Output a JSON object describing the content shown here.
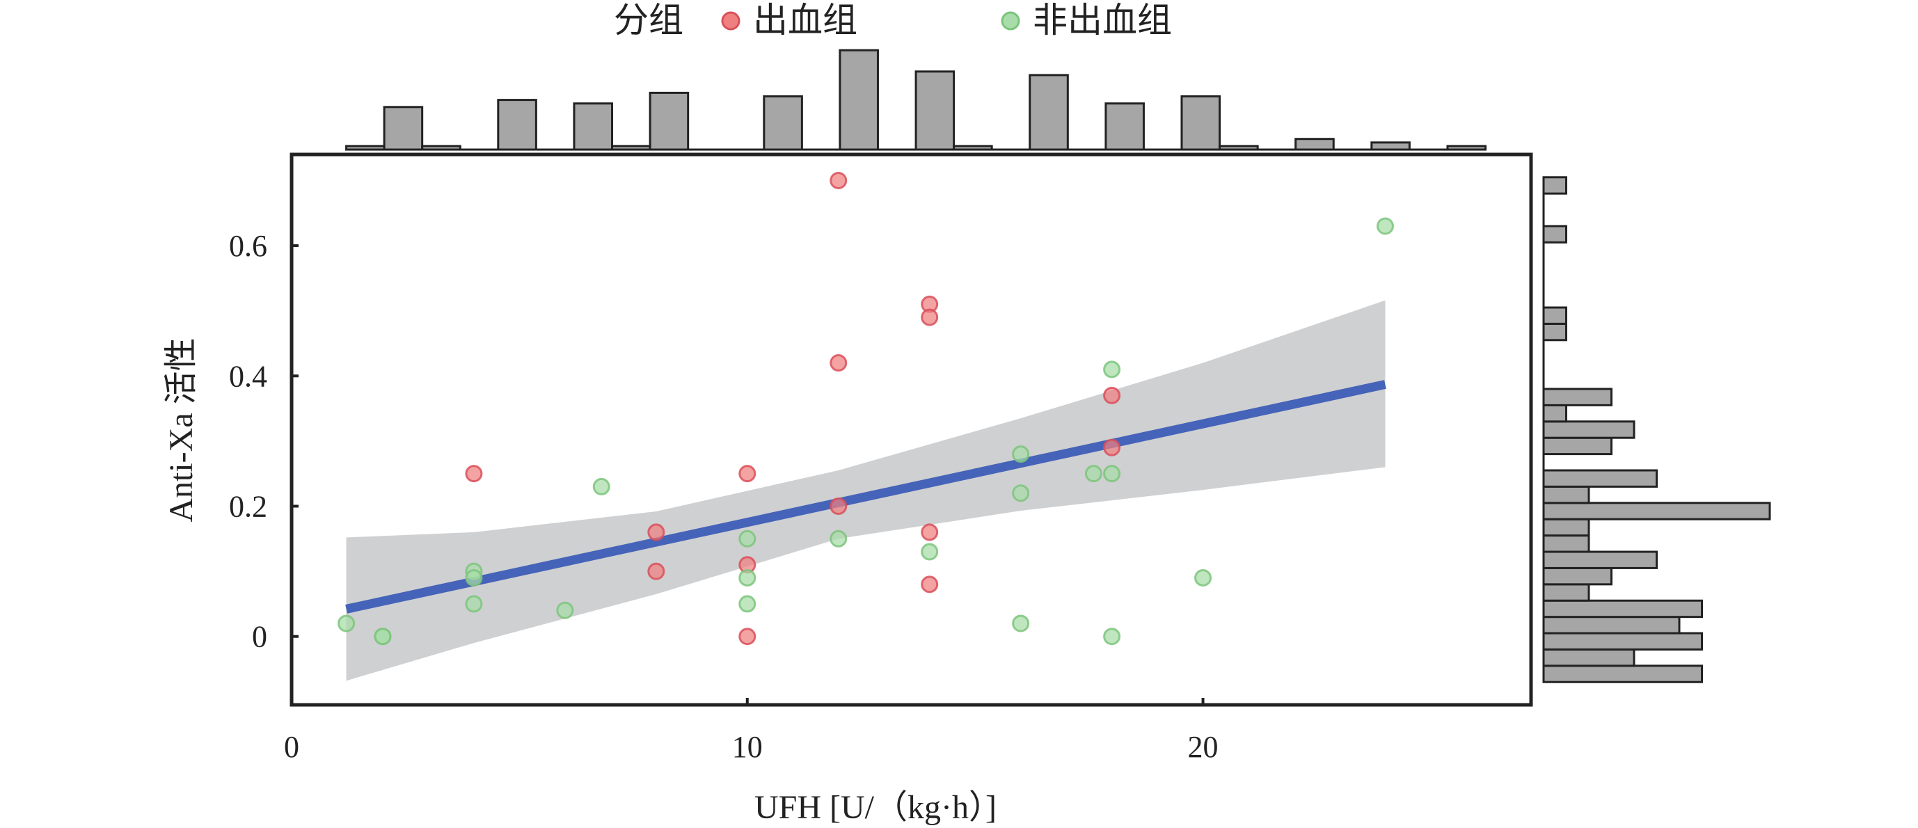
{
  "chart_data": {
    "type": "scatter",
    "title": "",
    "xlabel": "UFH [U/（kg·h）]",
    "ylabel": "Anti-Xa 活性",
    "xlim": [
      0,
      27.2
    ],
    "ylim": [
      -0.105,
      0.74
    ],
    "xticks": [
      0,
      10,
      20
    ],
    "xtick_labels": [
      "0",
      "10",
      "20"
    ],
    "yticks": [
      0,
      0.2,
      0.4,
      0.6
    ],
    "ytick_labels": [
      "0",
      "0.2",
      "0.4",
      "0.6"
    ],
    "grid": false,
    "legend": {
      "title": "分组",
      "placement": "top",
      "entries": [
        {
          "label": "出血组",
          "color": "#f08080"
        },
        {
          "label": "非出血组",
          "color": "#a8dca8"
        }
      ]
    },
    "series": [
      {
        "name": "出血组",
        "color": "#f08080",
        "edge_color": "#d9505a",
        "points": [
          [
            4,
            0.25
          ],
          [
            8,
            0.16
          ],
          [
            8,
            0.1
          ],
          [
            10,
            0.25
          ],
          [
            10,
            0.11
          ],
          [
            10,
            0.0
          ],
          [
            12,
            0.7
          ],
          [
            12,
            0.42
          ],
          [
            12,
            0.2
          ],
          [
            14,
            0.51
          ],
          [
            14,
            0.49
          ],
          [
            14,
            0.16
          ],
          [
            14,
            0.08
          ],
          [
            18,
            0.37
          ],
          [
            18,
            0.29
          ]
        ]
      },
      {
        "name": "非出血组",
        "color": "#a8dca8",
        "edge_color": "#7cc47c",
        "points": [
          [
            1.2,
            0.02
          ],
          [
            2,
            0.0
          ],
          [
            2,
            0.0
          ],
          [
            4,
            0.1
          ],
          [
            4,
            0.09
          ],
          [
            4,
            0.05
          ],
          [
            6,
            0.04
          ],
          [
            6.8,
            0.23
          ],
          [
            10,
            0.15
          ],
          [
            10,
            0.09
          ],
          [
            10,
            0.05
          ],
          [
            12,
            0.15
          ],
          [
            14,
            0.13
          ],
          [
            16,
            0.28
          ],
          [
            16,
            0.22
          ],
          [
            16,
            0.02
          ],
          [
            17.6,
            0.25
          ],
          [
            18,
            0.41
          ],
          [
            18,
            0.25
          ],
          [
            18,
            0.0
          ],
          [
            20,
            0.09
          ],
          [
            24,
            0.63
          ]
        ]
      }
    ],
    "regression": {
      "color": "#4563b8",
      "x": [
        1.2,
        24
      ],
      "y": [
        0.042,
        0.387
      ],
      "ci_color": "#cfd0d2",
      "ci_x": [
        1.2,
        4,
        8,
        12,
        16,
        20,
        24
      ],
      "ci_lower": [
        -0.068,
        -0.01,
        0.065,
        0.15,
        0.193,
        0.225,
        0.26
      ],
      "ci_upper": [
        0.152,
        0.16,
        0.192,
        0.255,
        0.335,
        0.42,
        0.516
      ]
    },
    "x_marginal": {
      "type": "histogram",
      "bin_width": 0.8333,
      "bins": [
        {
          "x0": 1.2,
          "count": 0.5
        },
        {
          "x0": 2.033,
          "count": 6
        },
        {
          "x0": 2.867,
          "count": 0.5
        },
        {
          "x0": 4.533,
          "count": 7
        },
        {
          "x0": 6.2,
          "count": 6.5
        },
        {
          "x0": 7.033,
          "count": 0.5
        },
        {
          "x0": 7.867,
          "count": 8
        },
        {
          "x0": 10.367,
          "count": 7.5
        },
        {
          "x0": 12.033,
          "count": 14
        },
        {
          "x0": 13.7,
          "count": 11
        },
        {
          "x0": 14.533,
          "count": 0.5
        },
        {
          "x0": 16.2,
          "count": 10.5
        },
        {
          "x0": 17.867,
          "count": 6.5
        },
        {
          "x0": 19.533,
          "count": 7.5
        },
        {
          "x0": 20.367,
          "count": 0.5
        },
        {
          "x0": 22.033,
          "count": 1.5
        },
        {
          "x0": 23.7,
          "count": 1
        },
        {
          "x0": 25.367,
          "count": 0.5
        }
      ]
    },
    "y_marginal": {
      "type": "histogram",
      "bin_width": 0.025,
      "bins": [
        {
          "y0": -0.07,
          "count": 7
        },
        {
          "y0": -0.045,
          "count": 4
        },
        {
          "y0": -0.02,
          "count": 7
        },
        {
          "y0": 0.005,
          "count": 6
        },
        {
          "y0": 0.03,
          "count": 7
        },
        {
          "y0": 0.055,
          "count": 2
        },
        {
          "y0": 0.08,
          "count": 3
        },
        {
          "y0": 0.105,
          "count": 5
        },
        {
          "y0": 0.13,
          "count": 2
        },
        {
          "y0": 0.155,
          "count": 2
        },
        {
          "y0": 0.18,
          "count": 10
        },
        {
          "y0": 0.205,
          "count": 2
        },
        {
          "y0": 0.23,
          "count": 5
        },
        {
          "y0": 0.28,
          "count": 3
        },
        {
          "y0": 0.305,
          "count": 4
        },
        {
          "y0": 0.33,
          "count": 1
        },
        {
          "y0": 0.355,
          "count": 3
        },
        {
          "y0": 0.455,
          "count": 1
        },
        {
          "y0": 0.48,
          "count": 1
        },
        {
          "y0": 0.605,
          "count": 1
        },
        {
          "y0": 0.68,
          "count": 1
        }
      ]
    }
  }
}
